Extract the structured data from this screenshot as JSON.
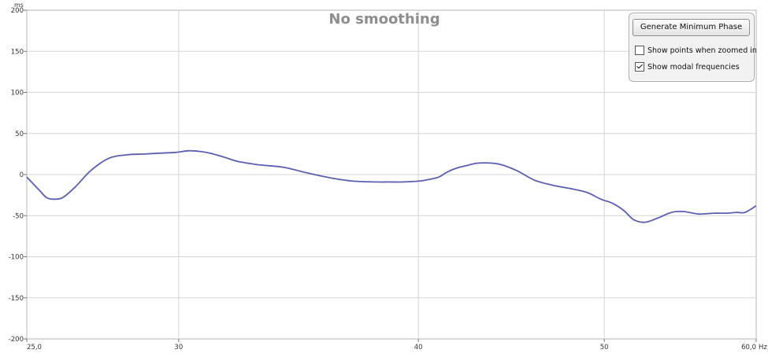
{
  "chart_data": {
    "type": "line",
    "title": "No smoothing",
    "ylabel": "ms",
    "x_unit": "Hz",
    "x_scale": "log",
    "xlim": [
      25.0,
      60.0
    ],
    "ylim": [
      -200,
      200
    ],
    "grid": true,
    "x_ticks": [
      {
        "value": 25.0,
        "label": "25,0"
      },
      {
        "value": 30,
        "label": "30"
      },
      {
        "value": 40,
        "label": "40"
      },
      {
        "value": 50,
        "label": "50"
      },
      {
        "value": 60.0,
        "label": "60,0"
      }
    ],
    "y_ticks": [
      {
        "value": 200,
        "label": "200"
      },
      {
        "value": 150,
        "label": "150"
      },
      {
        "value": 100,
        "label": "100"
      },
      {
        "value": 50,
        "label": "50"
      },
      {
        "value": 0,
        "label": "0"
      },
      {
        "value": -50,
        "label": "-50"
      },
      {
        "value": -100,
        "label": "-100"
      },
      {
        "value": -150,
        "label": "-150"
      },
      {
        "value": -200,
        "label": "-200"
      }
    ],
    "series": [
      {
        "color": "#5b5fb0",
        "x": [
          25.0,
          25.4,
          25.6,
          25.8,
          26.1,
          26.5,
          27.0,
          27.6,
          28.2,
          28.8,
          29.3,
          29.9,
          30.4,
          31.0,
          31.6,
          32.2,
          33.0,
          34.0,
          35.0,
          36.0,
          37.0,
          38.0,
          38.6,
          39.3,
          40.0,
          40.5,
          41.0,
          41.4,
          41.9,
          42.4,
          43.0,
          44.0,
          45.0,
          46.0,
          47.0,
          48.0,
          49.0,
          49.8,
          50.5,
          51.2,
          51.8,
          52.5,
          53.3,
          54.2,
          55.0,
          56.0,
          57.0,
          58.0,
          58.6,
          59.2,
          60.0
        ],
        "y": [
          -3,
          -20,
          -28,
          -30,
          -28,
          -15,
          5,
          20,
          24,
          25,
          26,
          27,
          29,
          27,
          22,
          16,
          12,
          9,
          2,
          -4,
          -8,
          -9,
          -9,
          -9,
          -8,
          -6,
          -3,
          3,
          8,
          11,
          14,
          13,
          5,
          -7,
          -13,
          -17,
          -22,
          -30,
          -35,
          -44,
          -55,
          -58,
          -53,
          -46,
          -45,
          -48,
          -47,
          -47,
          -46,
          -46,
          -38
        ]
      }
    ]
  },
  "panel": {
    "button_label": "Generate Minimum Phase",
    "options": [
      {
        "label": "Show points when zoomed in",
        "checked": false
      },
      {
        "label": "Show modal frequencies",
        "checked": true
      }
    ]
  }
}
